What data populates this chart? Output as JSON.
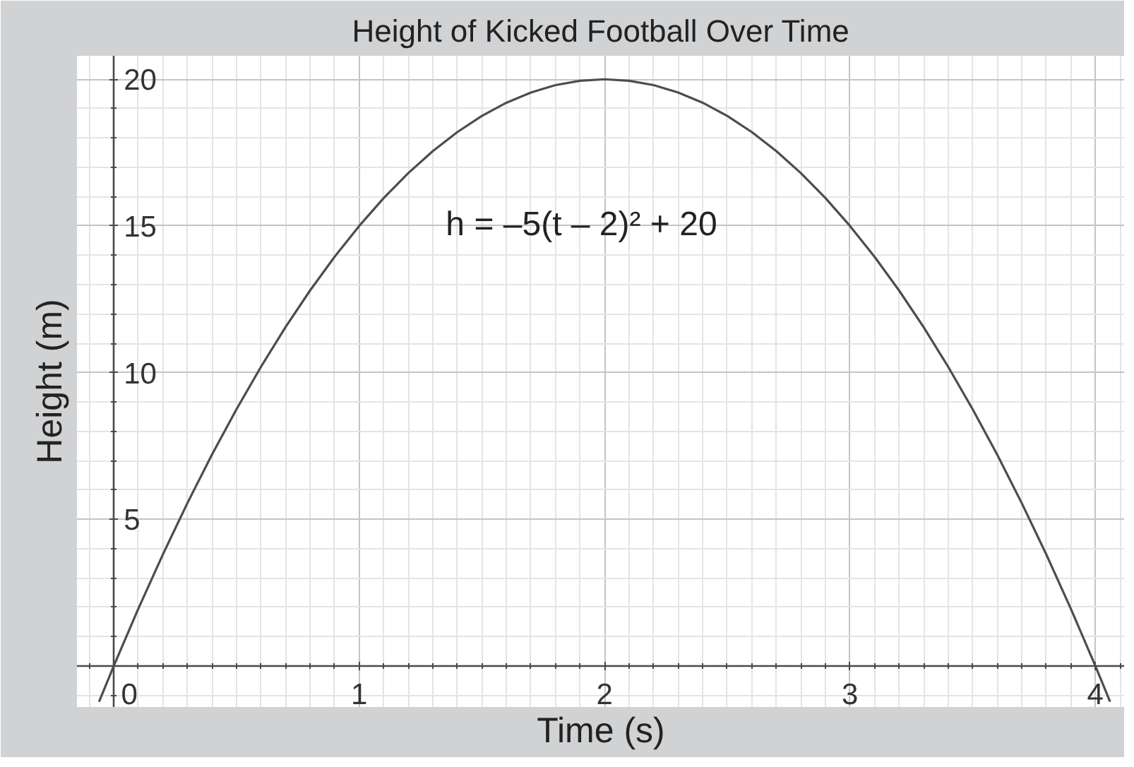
{
  "chart_data": {
    "type": "line",
    "title": "Height of Kicked Football Over Time",
    "xlabel": "Time (s)",
    "ylabel": "Height (m)",
    "annotations": [
      "h = –5(t – 2)² + 20"
    ],
    "x": [
      -0.06,
      0,
      0.1,
      0.2,
      0.3,
      0.4,
      0.5,
      0.6,
      0.7,
      0.8,
      0.9,
      1.0,
      1.1,
      1.2,
      1.3,
      1.4,
      1.5,
      1.6,
      1.7,
      1.8,
      1.9,
      2.0,
      2.1,
      2.2,
      2.3,
      2.4,
      2.5,
      2.6,
      2.7,
      2.8,
      2.9,
      3.0,
      3.1,
      3.2,
      3.3,
      3.4,
      3.5,
      3.6,
      3.7,
      3.8,
      3.9,
      4.0,
      4.06
    ],
    "series": [
      {
        "color": "#4d4d4d",
        "values": [
          -1.22,
          0,
          1.95,
          3.8,
          5.55,
          7.2,
          8.75,
          10.2,
          11.55,
          12.8,
          13.95,
          15,
          15.95,
          16.8,
          17.55,
          18.2,
          18.75,
          19.2,
          19.55,
          19.8,
          19.95,
          20,
          19.95,
          19.8,
          19.55,
          19.2,
          18.75,
          18.2,
          17.55,
          16.8,
          15.95,
          15,
          13.95,
          12.8,
          11.55,
          10.2,
          8.75,
          7.2,
          5.55,
          3.8,
          1.95,
          0,
          -1.22
        ]
      }
    ],
    "xlim": [
      -0.15,
      4.12
    ],
    "ylim": [
      -1.4,
      20.8
    ],
    "xticks": [
      0,
      1,
      2,
      3,
      4
    ],
    "yticks": [
      5,
      10,
      15,
      20
    ],
    "grid": true,
    "marker": "none",
    "line_style": "solid"
  }
}
